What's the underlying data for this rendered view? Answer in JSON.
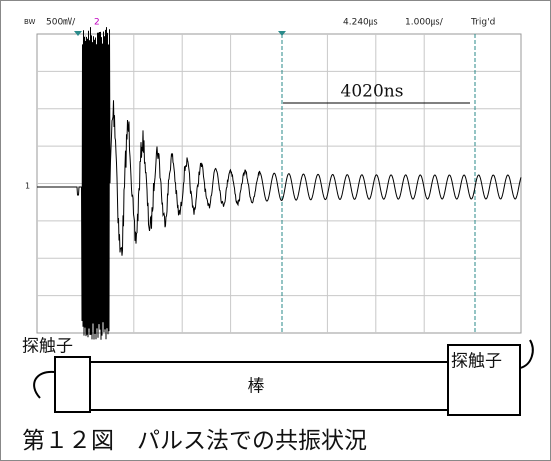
{
  "scope": {
    "bandwidth": "BW",
    "volts_per_div": "500㎷/",
    "channel": "2",
    "delay": "4.240㎲",
    "time_per_div": "1.000㎲/",
    "status": "Trig'd",
    "marker": "1",
    "interval": "4020ns"
  },
  "diagram": {
    "left_probe": "探触子",
    "right_probe": "探触子",
    "rod": "棒"
  },
  "caption": "第１２図　パルス法での共振状況"
}
